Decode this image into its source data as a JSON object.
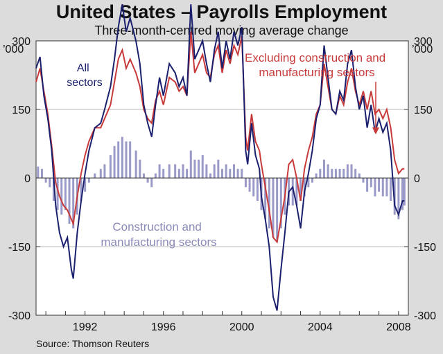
{
  "chart_data": {
    "type": "line",
    "title": "United States – Payrolls Employment",
    "subtitle": "Three-month-centred moving average change",
    "unit_label_left": "’000",
    "unit_label_right": "’000",
    "source": "Source: Thomson Reuters",
    "ylim": [
      -300,
      300
    ],
    "xlim": [
      1989.5,
      2008.5
    ],
    "yticks": [
      -300,
      -150,
      0,
      150,
      300
    ],
    "ytick_labels": [
      "-300",
      "-150",
      "0",
      "150",
      "300"
    ],
    "xticks": [
      1992,
      1996,
      2000,
      2004,
      2008
    ],
    "xtick_labels": [
      "1992",
      "1996",
      "2000",
      "2004",
      "2008"
    ],
    "annotations": {
      "all": [
        "All",
        "sectors"
      ],
      "excl": [
        "Excluding construction and",
        "manufacturing sectors"
      ],
      "cons": [
        "Construction and",
        "manufacturing sectors"
      ]
    },
    "series": [
      {
        "name": "All sectors",
        "color": "#1a1f6e",
        "points": [
          [
            1989.5,
            240
          ],
          [
            1989.7,
            265
          ],
          [
            1989.9,
            180
          ],
          [
            1990.1,
            130
          ],
          [
            1990.3,
            60
          ],
          [
            1990.5,
            -60
          ],
          [
            1990.7,
            -120
          ],
          [
            1990.9,
            -150
          ],
          [
            1991.1,
            -130
          ],
          [
            1991.3,
            -200
          ],
          [
            1991.4,
            -220
          ],
          [
            1991.6,
            -120
          ],
          [
            1991.8,
            -50
          ],
          [
            1992.0,
            10
          ],
          [
            1992.2,
            60
          ],
          [
            1992.5,
            110
          ],
          [
            1992.8,
            120
          ],
          [
            1993.0,
            150
          ],
          [
            1993.3,
            200
          ],
          [
            1993.5,
            260
          ],
          [
            1993.7,
            330
          ],
          [
            1993.9,
            380
          ],
          [
            1994.1,
            320
          ],
          [
            1994.3,
            350
          ],
          [
            1994.6,
            300
          ],
          [
            1994.8,
            250
          ],
          [
            1995.0,
            160
          ],
          [
            1995.2,
            120
          ],
          [
            1995.4,
            90
          ],
          [
            1995.6,
            160
          ],
          [
            1995.8,
            220
          ],
          [
            1996.0,
            180
          ],
          [
            1996.3,
            250
          ],
          [
            1996.6,
            230
          ],
          [
            1996.8,
            200
          ],
          [
            1997.0,
            220
          ],
          [
            1997.2,
            180
          ],
          [
            1997.4,
            380
          ],
          [
            1997.6,
            260
          ],
          [
            1997.8,
            280
          ],
          [
            1998.0,
            300
          ],
          [
            1998.2,
            250
          ],
          [
            1998.4,
            210
          ],
          [
            1998.6,
            280
          ],
          [
            1998.8,
            320
          ],
          [
            1999.0,
            240
          ],
          [
            1999.2,
            300
          ],
          [
            1999.4,
            260
          ],
          [
            1999.6,
            320
          ],
          [
            1999.8,
            290
          ],
          [
            2000.0,
            330
          ],
          [
            2000.2,
            60
          ],
          [
            2000.3,
            30
          ],
          [
            2000.5,
            120
          ],
          [
            2000.7,
            50
          ],
          [
            2000.9,
            20
          ],
          [
            2001.0,
            -40
          ],
          [
            2001.2,
            -90
          ],
          [
            2001.4,
            -150
          ],
          [
            2001.6,
            -260
          ],
          [
            2001.8,
            -290
          ],
          [
            2002.0,
            -200
          ],
          [
            2002.2,
            -120
          ],
          [
            2002.4,
            -30
          ],
          [
            2002.6,
            -20
          ],
          [
            2002.8,
            -60
          ],
          [
            2003.0,
            -110
          ],
          [
            2003.2,
            -30
          ],
          [
            2003.4,
            10
          ],
          [
            2003.6,
            60
          ],
          [
            2003.8,
            130
          ],
          [
            2004.0,
            160
          ],
          [
            2004.2,
            290
          ],
          [
            2004.4,
            220
          ],
          [
            2004.6,
            150
          ],
          [
            2004.8,
            140
          ],
          [
            2005.0,
            190
          ],
          [
            2005.2,
            170
          ],
          [
            2005.4,
            250
          ],
          [
            2005.6,
            280
          ],
          [
            2005.8,
            200
          ],
          [
            2006.0,
            150
          ],
          [
            2006.2,
            180
          ],
          [
            2006.4,
            110
          ],
          [
            2006.6,
            160
          ],
          [
            2006.8,
            100
          ],
          [
            2007.0,
            130
          ],
          [
            2007.2,
            100
          ],
          [
            2007.4,
            120
          ],
          [
            2007.6,
            60
          ],
          [
            2007.8,
            -60
          ],
          [
            2008.0,
            -80
          ],
          [
            2008.2,
            -50
          ],
          [
            2008.3,
            -50
          ]
        ]
      },
      {
        "name": "Excluding construction and manufacturing sectors",
        "color": "#c83a3a",
        "points": [
          [
            1989.5,
            210
          ],
          [
            1989.7,
            240
          ],
          [
            1989.9,
            190
          ],
          [
            1990.1,
            140
          ],
          [
            1990.3,
            70
          ],
          [
            1990.5,
            -10
          ],
          [
            1990.7,
            -40
          ],
          [
            1990.9,
            -60
          ],
          [
            1991.1,
            -70
          ],
          [
            1991.3,
            -90
          ],
          [
            1991.4,
            -100
          ],
          [
            1991.6,
            -40
          ],
          [
            1991.8,
            10
          ],
          [
            1992.0,
            50
          ],
          [
            1992.2,
            80
          ],
          [
            1992.5,
            110
          ],
          [
            1992.8,
            110
          ],
          [
            1993.0,
            130
          ],
          [
            1993.3,
            160
          ],
          [
            1993.5,
            210
          ],
          [
            1993.7,
            260
          ],
          [
            1993.9,
            280
          ],
          [
            1994.1,
            240
          ],
          [
            1994.3,
            260
          ],
          [
            1994.6,
            230
          ],
          [
            1994.8,
            200
          ],
          [
            1995.0,
            150
          ],
          [
            1995.2,
            130
          ],
          [
            1995.4,
            120
          ],
          [
            1995.6,
            170
          ],
          [
            1995.8,
            190
          ],
          [
            1996.0,
            160
          ],
          [
            1996.3,
            220
          ],
          [
            1996.6,
            210
          ],
          [
            1996.8,
            190
          ],
          [
            1997.0,
            200
          ],
          [
            1997.2,
            180
          ],
          [
            1997.4,
            320
          ],
          [
            1997.6,
            230
          ],
          [
            1997.8,
            250
          ],
          [
            1998.0,
            270
          ],
          [
            1998.2,
            230
          ],
          [
            1998.4,
            220
          ],
          [
            1998.6,
            270
          ],
          [
            1998.8,
            290
          ],
          [
            1999.0,
            230
          ],
          [
            1999.2,
            280
          ],
          [
            1999.4,
            250
          ],
          [
            1999.6,
            290
          ],
          [
            1999.8,
            270
          ],
          [
            2000.0,
            310
          ],
          [
            2000.2,
            90
          ],
          [
            2000.3,
            60
          ],
          [
            2000.5,
            140
          ],
          [
            2000.7,
            80
          ],
          [
            2000.9,
            60
          ],
          [
            2001.0,
            30
          ],
          [
            2001.2,
            -20
          ],
          [
            2001.4,
            -70
          ],
          [
            2001.6,
            -130
          ],
          [
            2001.8,
            -140
          ],
          [
            2002.0,
            -90
          ],
          [
            2002.2,
            -40
          ],
          [
            2002.4,
            30
          ],
          [
            2002.6,
            40
          ],
          [
            2002.8,
            0
          ],
          [
            2003.0,
            -50
          ],
          [
            2003.2,
            20
          ],
          [
            2003.4,
            60
          ],
          [
            2003.6,
            90
          ],
          [
            2003.8,
            140
          ],
          [
            2004.0,
            160
          ],
          [
            2004.2,
            250
          ],
          [
            2004.4,
            200
          ],
          [
            2004.6,
            150
          ],
          [
            2004.8,
            140
          ],
          [
            2005.0,
            180
          ],
          [
            2005.2,
            160
          ],
          [
            2005.4,
            210
          ],
          [
            2005.6,
            240
          ],
          [
            2005.8,
            190
          ],
          [
            2006.0,
            160
          ],
          [
            2006.2,
            190
          ],
          [
            2006.4,
            150
          ],
          [
            2006.6,
            190
          ],
          [
            2006.8,
            140
          ],
          [
            2007.0,
            150
          ],
          [
            2007.2,
            130
          ],
          [
            2007.4,
            150
          ],
          [
            2007.6,
            110
          ],
          [
            2007.8,
            40
          ],
          [
            2008.0,
            10
          ],
          [
            2008.2,
            20
          ],
          [
            2008.3,
            20
          ]
        ]
      },
      {
        "name": "Construction and manufacturing sectors",
        "type": "bar",
        "color": "#9a9ac8",
        "points": [
          [
            1989.6,
            25
          ],
          [
            1989.8,
            20
          ],
          [
            1990.0,
            -10
          ],
          [
            1990.2,
            -20
          ],
          [
            1990.4,
            -50
          ],
          [
            1990.6,
            -70
          ],
          [
            1990.8,
            -80
          ],
          [
            1991.0,
            -70
          ],
          [
            1991.2,
            -100
          ],
          [
            1991.4,
            -110
          ],
          [
            1991.6,
            -80
          ],
          [
            1991.8,
            -50
          ],
          [
            1992.0,
            -30
          ],
          [
            1992.2,
            -10
          ],
          [
            1992.5,
            10
          ],
          [
            1992.8,
            20
          ],
          [
            1993.0,
            30
          ],
          [
            1993.3,
            50
          ],
          [
            1993.5,
            70
          ],
          [
            1993.7,
            80
          ],
          [
            1993.9,
            90
          ],
          [
            1994.1,
            80
          ],
          [
            1994.3,
            80
          ],
          [
            1994.6,
            60
          ],
          [
            1994.8,
            40
          ],
          [
            1995.0,
            10
          ],
          [
            1995.2,
            -10
          ],
          [
            1995.4,
            -20
          ],
          [
            1995.6,
            10
          ],
          [
            1995.8,
            30
          ],
          [
            1996.0,
            20
          ],
          [
            1996.3,
            30
          ],
          [
            1996.6,
            30
          ],
          [
            1996.8,
            20
          ],
          [
            1997.0,
            30
          ],
          [
            1997.2,
            20
          ],
          [
            1997.4,
            60
          ],
          [
            1997.6,
            40
          ],
          [
            1997.8,
            40
          ],
          [
            1998.0,
            50
          ],
          [
            1998.2,
            30
          ],
          [
            1998.4,
            10
          ],
          [
            1998.6,
            30
          ],
          [
            1998.8,
            40
          ],
          [
            1999.0,
            20
          ],
          [
            1999.2,
            30
          ],
          [
            1999.4,
            20
          ],
          [
            1999.6,
            30
          ],
          [
            1999.8,
            20
          ],
          [
            2000.0,
            20
          ],
          [
            2000.2,
            -20
          ],
          [
            2000.4,
            -30
          ],
          [
            2000.6,
            -40
          ],
          [
            2000.8,
            -50
          ],
          [
            2001.0,
            -70
          ],
          [
            2001.2,
            -90
          ],
          [
            2001.4,
            -110
          ],
          [
            2001.6,
            -130
          ],
          [
            2001.8,
            -140
          ],
          [
            2002.0,
            -110
          ],
          [
            2002.2,
            -80
          ],
          [
            2002.4,
            -60
          ],
          [
            2002.6,
            -60
          ],
          [
            2002.8,
            -60
          ],
          [
            2003.0,
            -50
          ],
          [
            2003.2,
            -40
          ],
          [
            2003.4,
            -20
          ],
          [
            2003.6,
            -10
          ],
          [
            2003.8,
            10
          ],
          [
            2004.0,
            20
          ],
          [
            2004.2,
            40
          ],
          [
            2004.4,
            30
          ],
          [
            2004.6,
            20
          ],
          [
            2004.8,
            20
          ],
          [
            2005.0,
            20
          ],
          [
            2005.2,
            20
          ],
          [
            2005.4,
            30
          ],
          [
            2005.6,
            30
          ],
          [
            2005.8,
            20
          ],
          [
            2006.0,
            10
          ],
          [
            2006.2,
            -10
          ],
          [
            2006.4,
            -30
          ],
          [
            2006.6,
            -20
          ],
          [
            2006.8,
            -40
          ],
          [
            2007.0,
            -30
          ],
          [
            2007.2,
            -40
          ],
          [
            2007.4,
            -40
          ],
          [
            2007.6,
            -50
          ],
          [
            2007.8,
            -80
          ],
          [
            2008.0,
            -90
          ],
          [
            2008.2,
            -70
          ],
          [
            2008.3,
            -60
          ]
        ]
      }
    ]
  }
}
